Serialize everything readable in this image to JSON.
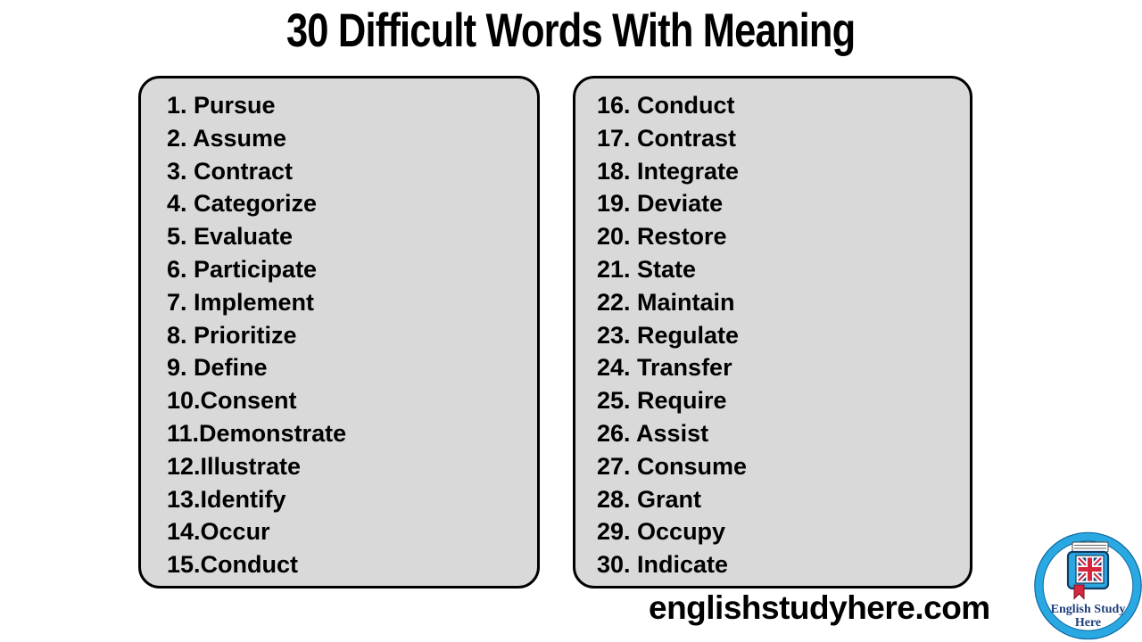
{
  "title": "30 Difficult Words With Meaning",
  "website": "englishstudyhere.com",
  "left_list": {
    "items": [
      "1. Pursue",
      "2. Assume",
      "3. Contract",
      "4. Categorize",
      "5. Evaluate",
      "6. Participate",
      "7. Implement",
      "8. Prioritize",
      "9. Define",
      "10.Consent",
      "11.Demonstrate",
      "12.Illustrate",
      "13.Identify",
      "14.Occur",
      "15.Conduct"
    ]
  },
  "right_list": {
    "items": [
      "16. Conduct",
      "17. Contrast",
      "18. Integrate",
      "19. Deviate",
      "20. Restore",
      "21. State",
      "22. Maintain",
      "23. Regulate",
      "24. Transfer",
      "25. Require",
      "26. Assist",
      "27. Consume",
      "28. Grant",
      "29. Occupy",
      "30. Indicate"
    ]
  },
  "logo": {
    "line1": "English Study",
    "line2": "Here"
  },
  "colors": {
    "panel_bg": "#d9d9d9",
    "panel_border": "#000000",
    "text": "#000000",
    "logo_ring_blue": "#29a8e1",
    "logo_book_blue": "#2aa7e0",
    "logo_outline_navy": "#123c63",
    "logo_text_navy": "#20407c",
    "flag_blue": "#20407c",
    "flag_red": "#d6263e",
    "ribbon_red": "#d6263e"
  }
}
